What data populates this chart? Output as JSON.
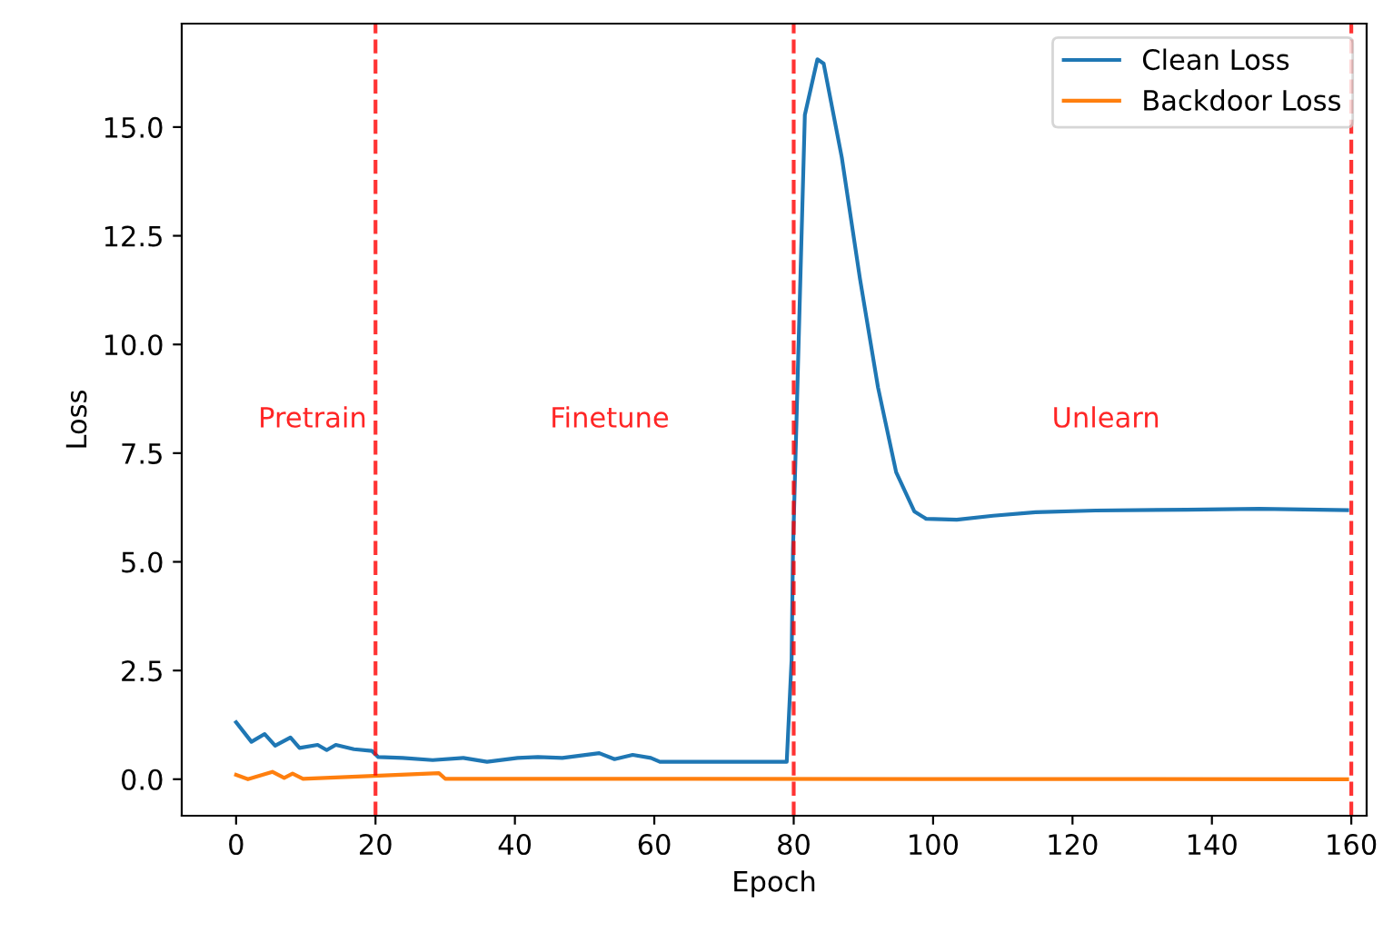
{
  "chart_data": {
    "type": "line",
    "xlabel": "Epoch",
    "ylabel": "Loss",
    "xlim": [
      -7.8,
      162.2
    ],
    "ylim": [
      -0.84,
      17.38
    ],
    "xticks": [
      0,
      20,
      40,
      60,
      80,
      100,
      120,
      140,
      160
    ],
    "yticks": [
      {
        "value": 0,
        "label": "0.0"
      },
      {
        "value": 2.5,
        "label": "2.5"
      },
      {
        "value": 5,
        "label": "5.0"
      },
      {
        "value": 7.5,
        "label": "7.5"
      },
      {
        "value": 10,
        "label": "10.0"
      },
      {
        "value": 12.5,
        "label": "12.5"
      },
      {
        "value": 15,
        "label": "15.0"
      }
    ],
    "series": [
      {
        "name": "Clean Loss",
        "color": "#1f77b4",
        "x": [
          0,
          2.2,
          4.1,
          5.6,
          7.8,
          9.1,
          11.7,
          13,
          14.3,
          16.9,
          19.5,
          20.4,
          23.9,
          28.2,
          32.6,
          36,
          40.4,
          43.3,
          46.8,
          52.1,
          54.3,
          56.9,
          59.5,
          60.8,
          79,
          79.7,
          79.9,
          81.6,
          83.4,
          84.3,
          86.9,
          89.5,
          92.1,
          94.7,
          97.3,
          99,
          103.4,
          108.6,
          114.7,
          123.3,
          136.4,
          146.8,
          159.4
        ],
        "values": [
          1.31,
          0.86,
          1.04,
          0.77,
          0.96,
          0.72,
          0.79,
          0.67,
          0.79,
          0.69,
          0.65,
          0.51,
          0.49,
          0.44,
          0.49,
          0.4,
          0.49,
          0.51,
          0.49,
          0.6,
          0.46,
          0.56,
          0.49,
          0.4,
          0.4,
          2.76,
          5.3,
          15.28,
          16.56,
          16.46,
          14.3,
          11.52,
          9.01,
          7.06,
          6.16,
          5.99,
          5.97,
          6.06,
          6.14,
          6.18,
          6.2,
          6.22,
          6.19
        ]
      },
      {
        "name": "Backdoor Loss",
        "color": "#ff7f0e",
        "x": [
          0,
          1.7,
          5.2,
          6.9,
          8.1,
          9.6,
          29.1,
          30,
          159.4
        ],
        "values": [
          0.1,
          0.0,
          0.17,
          0.03,
          0.13,
          0.01,
          0.14,
          0.01,
          0.0
        ]
      }
    ],
    "ref_lines": [
      {
        "axis": "x",
        "value": 20,
        "color": "#ff0000",
        "line_style": "dashed"
      },
      {
        "axis": "x",
        "value": 80,
        "color": "#ff0000",
        "line_style": "dashed"
      },
      {
        "axis": "x",
        "value": 160,
        "color": "#ff0000",
        "line_style": "dashed"
      }
    ],
    "annotations": [
      "Pretrain",
      "Finetune",
      "Unlearn"
    ],
    "legend": "top right",
    "grid": false
  }
}
